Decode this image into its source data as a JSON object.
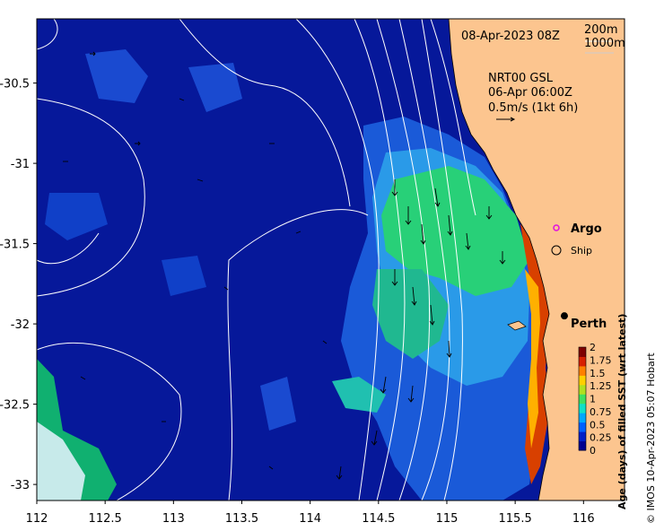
{
  "map": {
    "datetime": "08-Apr-2023 08Z",
    "isobath_labels": [
      "200m",
      "1000m"
    ],
    "current": {
      "source": "NRT00 GSL",
      "time": "06-Apr 06:00Z",
      "scale": "0.5m/s (1kt 6h)"
    },
    "legend": {
      "argo": "Argo",
      "ship": "Ship"
    },
    "place": {
      "label": "Perth",
      "lon": 115.86,
      "lat": -31.95
    },
    "lon_range": [
      112,
      116.3
    ],
    "lat_range": [
      -33.1,
      -30.1
    ],
    "x_ticks": [
      "112",
      "112.5",
      "113",
      "113.5",
      "114",
      "114.5",
      "115",
      "115.5",
      "116"
    ],
    "y_ticks": [
      "-30.5",
      "-31",
      "-31.5",
      "-32",
      "-32.5",
      "-33"
    ],
    "colorbar": {
      "title": "Age (days) of filled SST (wrt latest)",
      "ticks": [
        "0",
        "0.25",
        "0.5",
        "0.75",
        "1",
        "1.25",
        "1.5",
        "1.75",
        "2"
      ],
      "range": [
        0,
        2
      ],
      "colors": [
        "#00008f",
        "#0020c8",
        "#0060ff",
        "#00a8ff",
        "#10e0c8",
        "#40e060",
        "#b0e020",
        "#ffd000",
        "#ff8000",
        "#d82000",
        "#800000"
      ]
    },
    "credit": "© IMOS 10-Apr-2023 05:07 Hobart",
    "colors": {
      "ocean": "#06189a",
      "land": "#fcc58f",
      "contour": "#ffffff",
      "argo": "#e010e0"
    }
  }
}
